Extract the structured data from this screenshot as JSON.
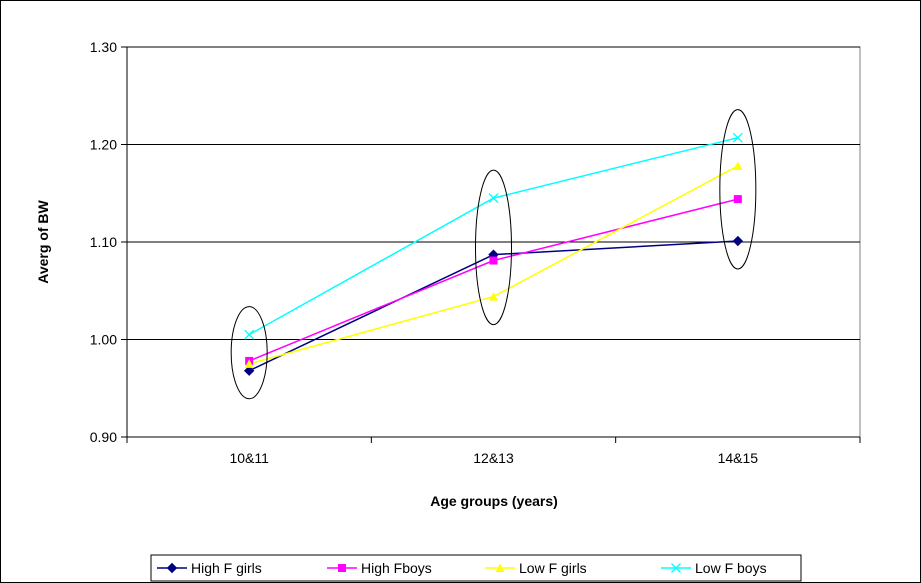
{
  "chart_data": {
    "type": "line",
    "title": "",
    "xlabel": "Age groups (years)",
    "ylabel": "Averg of BW",
    "categories": [
      "10&11",
      "12&13",
      "14&15"
    ],
    "ylim": [
      0.9,
      1.3
    ],
    "yticks": [
      "0.90",
      "1.00",
      "1.10",
      "1.20",
      "1.30"
    ],
    "grid": true,
    "legend_position": "bottom",
    "series": [
      {
        "name": "High F girls",
        "values": [
          0.968,
          1.087,
          1.101
        ],
        "color": "#000080",
        "marker": "diamond"
      },
      {
        "name": "High Fboys",
        "values": [
          0.978,
          1.081,
          1.144
        ],
        "color": "#FF00FF",
        "marker": "square"
      },
      {
        "name": "Low F girls",
        "values": [
          0.975,
          1.044,
          1.178
        ],
        "color": "#FFFF00",
        "marker": "triangle"
      },
      {
        "name": "Low F boys",
        "values": [
          1.005,
          1.145,
          1.207
        ],
        "color": "#00FFFF",
        "marker": "x"
      }
    ],
    "annotations": "ellipses around each age group"
  }
}
